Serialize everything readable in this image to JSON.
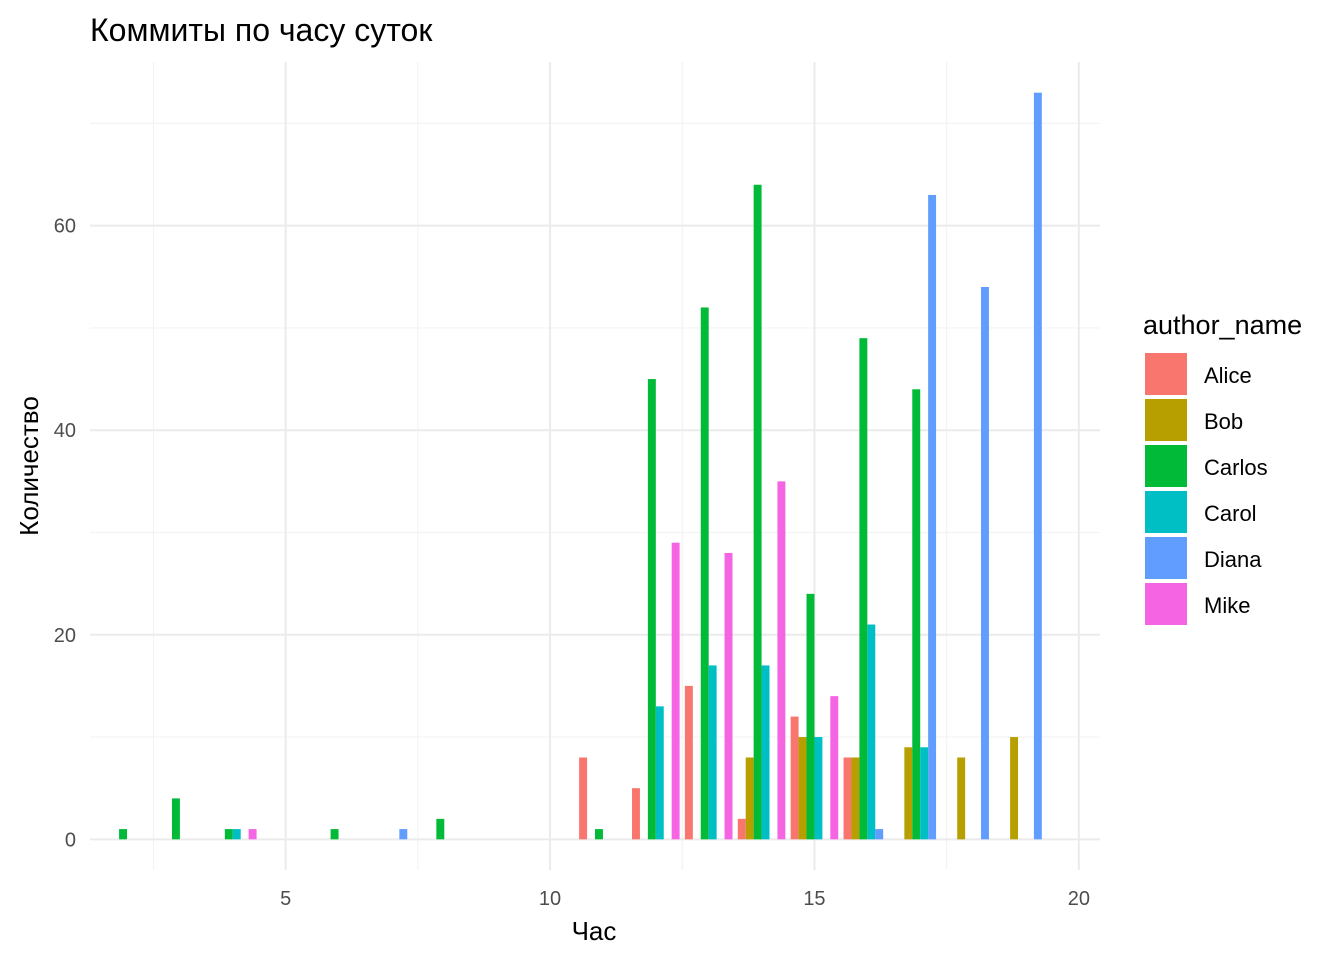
{
  "chart_data": {
    "type": "bar",
    "title": "Коммиты по часу суток",
    "xlabel": "Час",
    "ylabel": "Количество",
    "xlim": [
      1.3,
      20.4
    ],
    "ylim": [
      -3,
      76
    ],
    "x_ticks": [
      5,
      10,
      15,
      20
    ],
    "y_ticks": [
      0,
      20,
      40,
      60
    ],
    "grid": true,
    "legend": {
      "title": "author_name",
      "position": "right"
    },
    "series": [
      {
        "name": "Alice",
        "color": "#F8766D",
        "points": [
          [
            11,
            8
          ],
          [
            12,
            5
          ],
          [
            13,
            15
          ],
          [
            14,
            2
          ],
          [
            15,
            12
          ],
          [
            16,
            8
          ]
        ]
      },
      {
        "name": "Bob",
        "color": "#B79F00",
        "points": [
          [
            14,
            8
          ],
          [
            15,
            10
          ],
          [
            16,
            8
          ],
          [
            17,
            9
          ],
          [
            18,
            8
          ],
          [
            19,
            10
          ]
        ]
      },
      {
        "name": "Carlos",
        "color": "#00BA38",
        "points": [
          [
            2,
            1
          ],
          [
            3,
            4
          ],
          [
            4,
            1
          ],
          [
            6,
            1
          ],
          [
            8,
            2
          ],
          [
            11,
            1
          ],
          [
            12,
            45
          ],
          [
            13,
            52
          ],
          [
            14,
            64
          ],
          [
            15,
            24
          ],
          [
            16,
            49
          ],
          [
            17,
            44
          ]
        ]
      },
      {
        "name": "Carol",
        "color": "#00BFC4",
        "points": [
          [
            4,
            1
          ],
          [
            12,
            13
          ],
          [
            13,
            17
          ],
          [
            14,
            17
          ],
          [
            15,
            10
          ],
          [
            16,
            21
          ],
          [
            17,
            9
          ]
        ]
      },
      {
        "name": "Diana",
        "color": "#619CFF",
        "points": [
          [
            7,
            1
          ],
          [
            16,
            1
          ],
          [
            17,
            63
          ],
          [
            18,
            54
          ],
          [
            19,
            73
          ]
        ]
      },
      {
        "name": "Mike",
        "color": "#F564E3",
        "points": [
          [
            4,
            1
          ],
          [
            12,
            29
          ],
          [
            13,
            28
          ],
          [
            14,
            35
          ],
          [
            15,
            14
          ]
        ]
      }
    ]
  }
}
